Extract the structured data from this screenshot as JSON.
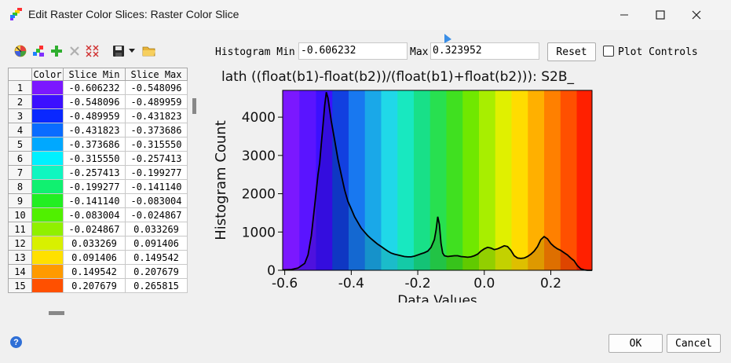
{
  "window": {
    "title": "Edit Raster Color Slices: Raster Color Slice",
    "minimize_icon": "minimize-icon",
    "maximize_icon": "maximize-icon",
    "close_icon": "close-icon"
  },
  "toolbar": {
    "icons": [
      "color-wheel-icon",
      "auto-color-icon",
      "add-icon",
      "delete-icon",
      "delete-all-icon",
      "save-icon",
      "dropdown-icon",
      "open-folder-icon"
    ]
  },
  "histogram": {
    "min_label": "Histogram Min",
    "min_value": "-0.606232",
    "max_label": "Max",
    "max_value": "0.323952",
    "reset_label": "Reset",
    "plot_controls_label": "Plot Controls"
  },
  "table": {
    "headers": [
      "Color",
      "Slice Min",
      "Slice Max"
    ],
    "rows": [
      {
        "n": "1",
        "color": "#7b18ff",
        "min": "-0.606232",
        "max": "-0.548096"
      },
      {
        "n": "2",
        "color": "#3c10ff",
        "min": "-0.548096",
        "max": "-0.489959"
      },
      {
        "n": "3",
        "color": "#0a28ff",
        "min": "-0.489959",
        "max": "-0.431823"
      },
      {
        "n": "4",
        "color": "#0a6cff",
        "min": "-0.431823",
        "max": "-0.373686"
      },
      {
        "n": "5",
        "color": "#00a8ff",
        "min": "-0.373686",
        "max": "-0.315550"
      },
      {
        "n": "6",
        "color": "#00f0ff",
        "min": "-0.315550",
        "max": "-0.257413"
      },
      {
        "n": "7",
        "color": "#10f6c0",
        "min": "-0.257413",
        "max": "-0.199277"
      },
      {
        "n": "8",
        "color": "#10f070",
        "min": "-0.199277",
        "max": "-0.141140"
      },
      {
        "n": "9",
        "color": "#22ee22",
        "min": "-0.141140",
        "max": "-0.083004"
      },
      {
        "n": "10",
        "color": "#50f000",
        "min": "-0.083004",
        "max": "-0.024867"
      },
      {
        "n": "11",
        "color": "#90f000",
        "min": "-0.024867",
        "max": "0.033269"
      },
      {
        "n": "12",
        "color": "#d8f000",
        "min": "0.033269",
        "max": "0.091406"
      },
      {
        "n": "13",
        "color": "#ffe000",
        "min": "0.091406",
        "max": "0.149542"
      },
      {
        "n": "14",
        "color": "#ff9a00",
        "min": "0.149542",
        "max": "0.207679"
      },
      {
        "n": "15",
        "color": "#ff5000",
        "min": "0.207679",
        "max": "0.265815"
      }
    ]
  },
  "chart_data": {
    "type": "area",
    "title": "lath ((float(b1)-float(b2))/(float(b1)+float(b2))): S2B_",
    "xlabel": "Data Values",
    "ylabel": "Histogram Count",
    "xlim": [
      -0.606232,
      0.323952
    ],
    "ylim": [
      0,
      4700
    ],
    "xticks": [
      -0.6,
      -0.4,
      -0.2,
      0.0,
      0.2
    ],
    "xtick_labels": [
      "-0.6",
      "-0.4",
      "-0.2",
      "0.0",
      "0.2"
    ],
    "yticks": [
      0,
      1000,
      2000,
      3000,
      4000
    ],
    "ytick_labels": [
      "0",
      "1000",
      "2000",
      "3000",
      "4000"
    ],
    "bands": [
      {
        "x0": -0.606232,
        "x1": -0.556,
        "color": "#7b18ff"
      },
      {
        "x0": -0.556,
        "x1": -0.506,
        "color": "#5a14ff"
      },
      {
        "x0": -0.506,
        "x1": -0.457,
        "color": "#3c10ff"
      },
      {
        "x0": -0.457,
        "x1": -0.408,
        "color": "#1240e0"
      },
      {
        "x0": -0.408,
        "x1": -0.359,
        "color": "#1878f0"
      },
      {
        "x0": -0.359,
        "x1": -0.31,
        "color": "#1aa8e8"
      },
      {
        "x0": -0.31,
        "x1": -0.261,
        "color": "#20d8e8"
      },
      {
        "x0": -0.261,
        "x1": -0.212,
        "color": "#18e8c0"
      },
      {
        "x0": -0.212,
        "x1": -0.163,
        "color": "#18e088"
      },
      {
        "x0": -0.163,
        "x1": -0.114,
        "color": "#28e050"
      },
      {
        "x0": -0.114,
        "x1": -0.065,
        "color": "#40e020"
      },
      {
        "x0": -0.065,
        "x1": -0.016,
        "color": "#70e800"
      },
      {
        "x0": -0.016,
        "x1": 0.033,
        "color": "#a8ee00"
      },
      {
        "x0": 0.033,
        "x1": 0.082,
        "color": "#e0f000"
      },
      {
        "x0": 0.082,
        "x1": 0.131,
        "color": "#ffdc00"
      },
      {
        "x0": 0.131,
        "x1": 0.18,
        "color": "#ffb000"
      },
      {
        "x0": 0.18,
        "x1": 0.229,
        "color": "#ff8000"
      },
      {
        "x0": 0.229,
        "x1": 0.278,
        "color": "#ff5000"
      },
      {
        "x0": 0.278,
        "x1": 0.323952,
        "color": "#ff2000"
      }
    ],
    "series": [
      {
        "x": [
          -0.606,
          -0.58,
          -0.56,
          -0.54,
          -0.53,
          -0.52,
          -0.51,
          -0.5,
          -0.495,
          -0.49,
          -0.485,
          -0.48,
          -0.475,
          -0.47,
          -0.465,
          -0.46,
          -0.45,
          -0.44,
          -0.43,
          -0.42,
          -0.41,
          -0.4,
          -0.39,
          -0.38,
          -0.37,
          -0.36,
          -0.35,
          -0.34,
          -0.33,
          -0.32,
          -0.31,
          -0.3,
          -0.29,
          -0.28,
          -0.27,
          -0.26,
          -0.25,
          -0.24,
          -0.23,
          -0.22,
          -0.21,
          -0.2,
          -0.19,
          -0.18,
          -0.17,
          -0.16,
          -0.15,
          -0.145,
          -0.14,
          -0.135,
          -0.13,
          -0.125,
          -0.12,
          -0.11,
          -0.1,
          -0.09,
          -0.08,
          -0.07,
          -0.06,
          -0.05,
          -0.04,
          -0.03,
          -0.02,
          -0.01,
          0.0,
          0.01,
          0.02,
          0.03,
          0.04,
          0.05,
          0.06,
          0.07,
          0.08,
          0.09,
          0.1,
          0.11,
          0.12,
          0.13,
          0.14,
          0.15,
          0.16,
          0.17,
          0.18,
          0.19,
          0.2,
          0.21,
          0.22,
          0.23,
          0.24,
          0.25,
          0.26,
          0.27,
          0.28,
          0.29,
          0.3,
          0.31,
          0.3239
        ],
        "y": [
          10,
          20,
          60,
          180,
          400,
          900,
          1700,
          2500,
          2800,
          3300,
          3800,
          4300,
          4650,
          4500,
          4200,
          3900,
          3400,
          2900,
          2500,
          2100,
          1800,
          1600,
          1400,
          1250,
          1100,
          1000,
          900,
          820,
          750,
          680,
          620,
          560,
          500,
          450,
          420,
          400,
          380,
          360,
          350,
          350,
          370,
          400,
          430,
          460,
          500,
          600,
          800,
          1050,
          1400,
          1200,
          700,
          450,
          380,
          360,
          370,
          380,
          380,
          360,
          350,
          340,
          350,
          380,
          420,
          500,
          560,
          600,
          580,
          540,
          560,
          600,
          640,
          620,
          520,
          380,
          320,
          310,
          320,
          360,
          420,
          500,
          620,
          800,
          880,
          820,
          700,
          620,
          560,
          520,
          460,
          400,
          320,
          250,
          120,
          40,
          10,
          0,
          0
        ]
      }
    ],
    "grid": false,
    "legend": false
  },
  "buttons": {
    "ok_label": "OK",
    "cancel_label": "Cancel"
  }
}
